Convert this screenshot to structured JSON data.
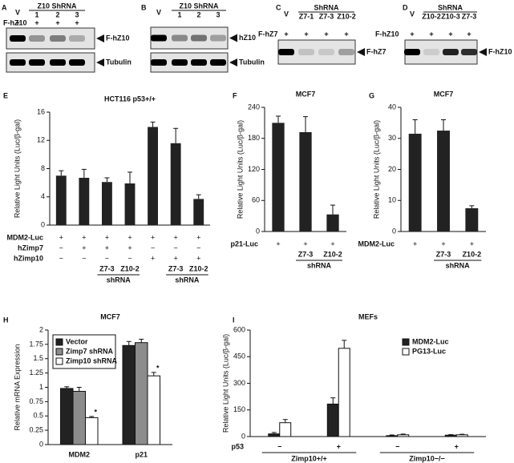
{
  "blots": [
    {
      "panel": "A",
      "control": "V",
      "group": "Z10 ShRNA",
      "lanes": [
        "1",
        "2",
        "3"
      ],
      "treatment": {
        "label": "F-hZ10",
        "marks": [
          "+",
          "+",
          "+",
          "+"
        ]
      },
      "bands": [
        "F-hZ10",
        "Tubulin"
      ]
    },
    {
      "panel": "B",
      "control": "V",
      "group": "Z10 ShRNA",
      "lanes": [
        "1",
        "2",
        "3"
      ],
      "bands": [
        "hZ10",
        "Tubulin"
      ]
    },
    {
      "panel": "C",
      "control": "V",
      "group": "ShRNA",
      "lanes": [
        "Z7-1",
        "Z7-3",
        "Z10-2"
      ],
      "treatment": {
        "label": "F-hZ7",
        "marks": [
          "+",
          "+",
          "+",
          "+"
        ]
      },
      "bands": [
        "F-hZ7"
      ]
    },
    {
      "panel": "D",
      "control": "V",
      "group": "ShRNA",
      "lanes": [
        "Z10-2",
        "Z10-3",
        "Z7-3"
      ],
      "treatment": {
        "label": "F-hZ10",
        "marks": [
          "+",
          "+",
          "+",
          "+"
        ]
      },
      "bands": [
        "F-hZ10"
      ]
    }
  ],
  "chart_data": [
    {
      "type": "bar",
      "panel": "E",
      "title": "HCT116 p53+/+",
      "ylabel": "Relative Light Units (Luc/β-gal)",
      "values": [
        7.0,
        6.7,
        6.1,
        5.9,
        13.9,
        11.6,
        3.7
      ],
      "errors": [
        0.7,
        1.2,
        0.6,
        1.6,
        0.7,
        2.1,
        0.6
      ],
      "color": "#222222",
      "ylim": [
        0,
        16
      ],
      "yticks": [
        0,
        4,
        8,
        12,
        16
      ],
      "conditions": [
        {
          "label": "MDM2-Luc",
          "marks": [
            "+",
            "+",
            "+",
            "+",
            "+",
            "+",
            "+"
          ]
        },
        {
          "label": "hZimp7",
          "marks": [
            "−",
            "+",
            "+",
            "+",
            "−",
            "−",
            "−"
          ]
        },
        {
          "label": "hZimp10",
          "marks": [
            "−",
            "−",
            "−",
            "−",
            "+",
            "+",
            "+"
          ]
        }
      ],
      "shrna_groups": [
        {
          "labels": [
            "Z7-3",
            "Z10-2"
          ],
          "caption": "shRNA"
        },
        {
          "labels": [
            "Z7-3",
            "Z10-2"
          ],
          "caption": "shRNA"
        }
      ]
    },
    {
      "type": "bar",
      "panel": "F",
      "title": "MCF7",
      "ylabel": "Relative Light Units (Luc/β-gal)",
      "values": [
        210,
        192,
        33
      ],
      "errors": [
        13,
        30,
        18
      ],
      "color": "#222222",
      "ylim": [
        0,
        240
      ],
      "yticks": [
        0,
        60,
        120,
        180,
        240
      ],
      "conditions": [
        {
          "label": "p21-Luc",
          "marks": [
            "+",
            "+",
            "+"
          ]
        }
      ],
      "shrna_groups": [
        {
          "labels": [
            "Z7-3",
            "Z10-2"
          ],
          "caption": "shRNA"
        }
      ]
    },
    {
      "type": "bar",
      "panel": "G",
      "title": "MCF7",
      "ylabel": "Relative Light Units (Luc/β-gal)",
      "values": [
        31.5,
        32.5,
        7.5
      ],
      "errors": [
        4.5,
        3.5,
        0.8
      ],
      "color": "#222222",
      "ylim": [
        0,
        40
      ],
      "yticks": [
        0,
        10,
        20,
        30,
        40
      ],
      "conditions": [
        {
          "label": "MDM2-Luc",
          "marks": [
            "+",
            "+",
            "+"
          ]
        }
      ],
      "shrna_groups": [
        {
          "labels": [
            "Z7-3",
            "Z10-2"
          ],
          "caption": "shRNA"
        }
      ]
    },
    {
      "type": "grouped-bar",
      "panel": "H",
      "title": "MCF7",
      "ylabel": "Relative mRNA Expression",
      "categories": [
        "MDM2",
        "p21"
      ],
      "legend": "upper left",
      "series": [
        {
          "name": "Vector",
          "color": "#222222",
          "values": [
            0.98,
            1.73
          ],
          "errors": [
            0.03,
            0.07
          ]
        },
        {
          "name": "Zimp7 shRNA",
          "color": "#8c8c8c",
          "values": [
            0.93,
            1.78
          ],
          "errors": [
            0.07,
            0.06
          ]
        },
        {
          "name": "Zimp10 shRNA",
          "color": "#ffffff",
          "values": [
            0.47,
            1.2
          ],
          "errors": [
            0.02,
            0.06
          ],
          "annotations": [
            "*",
            "*"
          ]
        }
      ],
      "ylim": [
        0,
        2
      ],
      "yticks": [
        0,
        0.25,
        0.5,
        0.75,
        1,
        1.25,
        1.5,
        1.75,
        2
      ]
    },
    {
      "type": "grouped-bar",
      "panel": "I",
      "title": "MEFs",
      "ylabel": "Relative Light Units (Luc/β-gal)",
      "categories": [
        "−",
        "+",
        "−",
        "+"
      ],
      "category_label": "p53",
      "legend": "upper right",
      "groups": [
        "Zimp10+/+",
        "Zimp10−/−"
      ],
      "series": [
        {
          "name": "MDM2-Luc",
          "color": "#222222",
          "values": [
            15,
            183,
            5,
            8
          ],
          "errors": [
            8,
            35,
            4,
            3
          ]
        },
        {
          "name": "PG13-Luc",
          "color": "#ffffff",
          "values": [
            78,
            497,
            10,
            10
          ],
          "errors": [
            18,
            45,
            4,
            3
          ]
        }
      ],
      "ylim": [
        0,
        600
      ],
      "yticks": [
        0,
        150,
        300,
        450,
        600
      ]
    }
  ]
}
